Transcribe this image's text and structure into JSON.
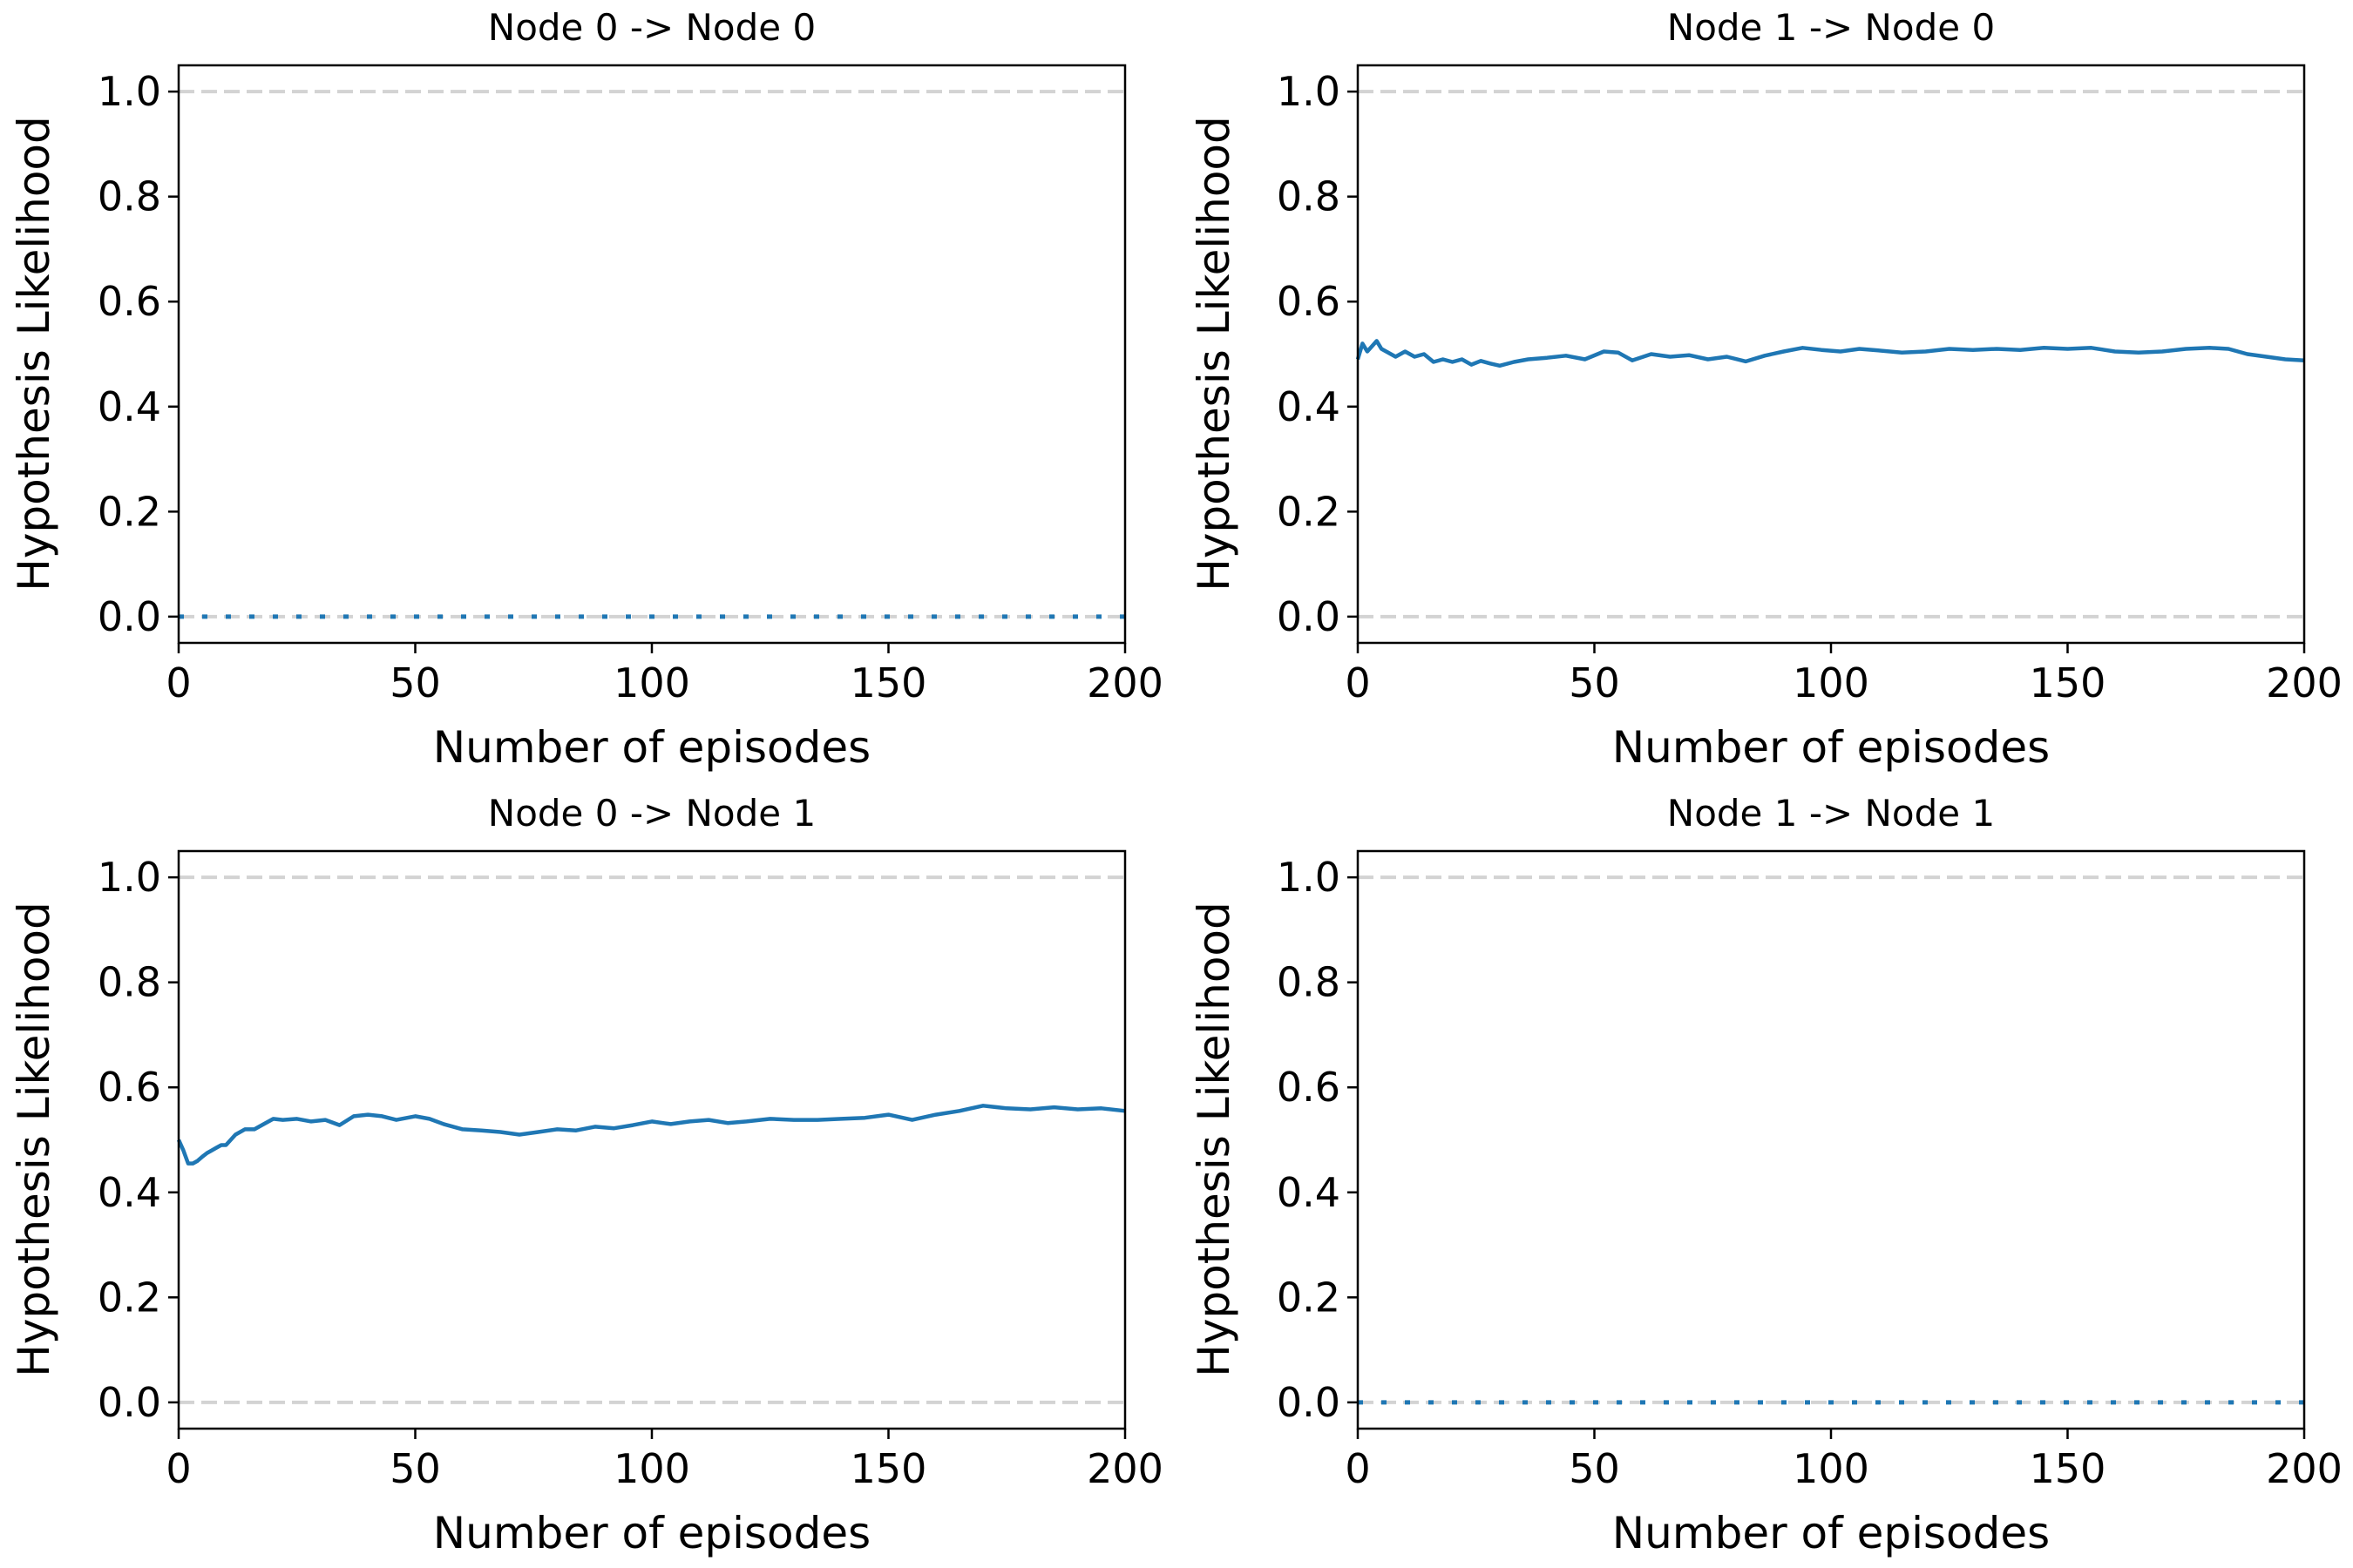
{
  "figure": {
    "colors": {
      "series": "#1f77b4",
      "reference": "#d3d3d3",
      "frame": "#000000"
    }
  },
  "chart_data": [
    {
      "type": "line",
      "title": "Node 0 -> Node 0",
      "xlabel": "Number of episodes",
      "ylabel": "Hypothesis Likelihood",
      "xlim": [
        0,
        200
      ],
      "ylim": [
        -0.05,
        1.05
      ],
      "xticks": [
        "0",
        "50",
        "100",
        "150",
        "200"
      ],
      "yticks": [
        "0.0",
        "0.2",
        "0.4",
        "0.6",
        "0.8",
        "1.0"
      ],
      "reference_lines": [
        0.0,
        1.0
      ],
      "series": [
        {
          "style": "dotted",
          "x": [
            0,
            200
          ],
          "y": [
            0.0,
            0.0
          ]
        }
      ]
    },
    {
      "type": "line",
      "title": "Node 1 -> Node 0",
      "xlabel": "Number of episodes",
      "ylabel": "Hypothesis Likelihood",
      "xlim": [
        0,
        200
      ],
      "ylim": [
        -0.05,
        1.05
      ],
      "xticks": [
        "0",
        "50",
        "100",
        "150",
        "200"
      ],
      "yticks": [
        "0.0",
        "0.2",
        "0.4",
        "0.6",
        "0.8",
        "1.0"
      ],
      "reference_lines": [
        0.0,
        1.0
      ],
      "series": [
        {
          "style": "solid",
          "x": [
            0,
            1,
            2,
            3,
            4,
            5,
            6,
            7,
            8,
            10,
            12,
            14,
            16,
            18,
            20,
            22,
            24,
            26,
            28,
            30,
            33,
            36,
            40,
            44,
            48,
            52,
            55,
            58,
            62,
            66,
            70,
            74,
            78,
            82,
            86,
            90,
            94,
            98,
            102,
            106,
            110,
            115,
            120,
            125,
            130,
            135,
            140,
            145,
            150,
            155,
            160,
            165,
            170,
            175,
            180,
            184,
            188,
            192,
            196,
            200
          ],
          "y": [
            0.49,
            0.52,
            0.505,
            0.515,
            0.525,
            0.51,
            0.505,
            0.5,
            0.495,
            0.505,
            0.495,
            0.5,
            0.485,
            0.49,
            0.485,
            0.49,
            0.48,
            0.487,
            0.482,
            0.478,
            0.485,
            0.49,
            0.493,
            0.497,
            0.49,
            0.505,
            0.503,
            0.488,
            0.5,
            0.495,
            0.498,
            0.49,
            0.495,
            0.486,
            0.497,
            0.505,
            0.512,
            0.508,
            0.505,
            0.51,
            0.507,
            0.503,
            0.505,
            0.51,
            0.508,
            0.51,
            0.508,
            0.512,
            0.51,
            0.512,
            0.505,
            0.503,
            0.505,
            0.51,
            0.512,
            0.51,
            0.5,
            0.495,
            0.49,
            0.488
          ]
        }
      ]
    },
    {
      "type": "line",
      "title": "Node 0 -> Node 1",
      "xlabel": "Number of episodes",
      "ylabel": "Hypothesis Likelihood",
      "xlim": [
        0,
        200
      ],
      "ylim": [
        -0.05,
        1.05
      ],
      "xticks": [
        "0",
        "50",
        "100",
        "150",
        "200"
      ],
      "yticks": [
        "0.0",
        "0.2",
        "0.4",
        "0.6",
        "0.8",
        "1.0"
      ],
      "reference_lines": [
        0.0,
        1.0
      ],
      "series": [
        {
          "style": "solid",
          "x": [
            0,
            1,
            2,
            3,
            4,
            5,
            6,
            7,
            8,
            9,
            10,
            12,
            14,
            16,
            18,
            20,
            22,
            25,
            28,
            31,
            34,
            37,
            40,
            43,
            46,
            50,
            53,
            56,
            60,
            64,
            68,
            72,
            76,
            80,
            84,
            88,
            92,
            96,
            100,
            104,
            108,
            112,
            116,
            120,
            125,
            130,
            135,
            140,
            145,
            150,
            155,
            160,
            165,
            170,
            175,
            180,
            185,
            190,
            195,
            200
          ],
          "y": [
            0.5,
            0.48,
            0.455,
            0.455,
            0.46,
            0.468,
            0.475,
            0.48,
            0.485,
            0.49,
            0.49,
            0.51,
            0.52,
            0.52,
            0.53,
            0.54,
            0.538,
            0.54,
            0.535,
            0.538,
            0.528,
            0.545,
            0.548,
            0.545,
            0.538,
            0.545,
            0.54,
            0.53,
            0.52,
            0.518,
            0.515,
            0.51,
            0.515,
            0.52,
            0.518,
            0.525,
            0.522,
            0.528,
            0.535,
            0.53,
            0.535,
            0.538,
            0.532,
            0.535,
            0.54,
            0.538,
            0.538,
            0.54,
            0.542,
            0.548,
            0.538,
            0.548,
            0.555,
            0.565,
            0.56,
            0.558,
            0.562,
            0.558,
            0.56,
            0.555
          ]
        }
      ]
    },
    {
      "type": "line",
      "title": "Node 1 -> Node 1",
      "xlabel": "Number of episodes",
      "ylabel": "Hypothesis Likelihood",
      "xlim": [
        0,
        200
      ],
      "ylim": [
        -0.05,
        1.05
      ],
      "xticks": [
        "0",
        "50",
        "100",
        "150",
        "200"
      ],
      "yticks": [
        "0.0",
        "0.2",
        "0.4",
        "0.6",
        "0.8",
        "1.0"
      ],
      "reference_lines": [
        0.0,
        1.0
      ],
      "series": [
        {
          "style": "dotted",
          "x": [
            0,
            200
          ],
          "y": [
            0.0,
            0.0
          ]
        }
      ]
    }
  ]
}
